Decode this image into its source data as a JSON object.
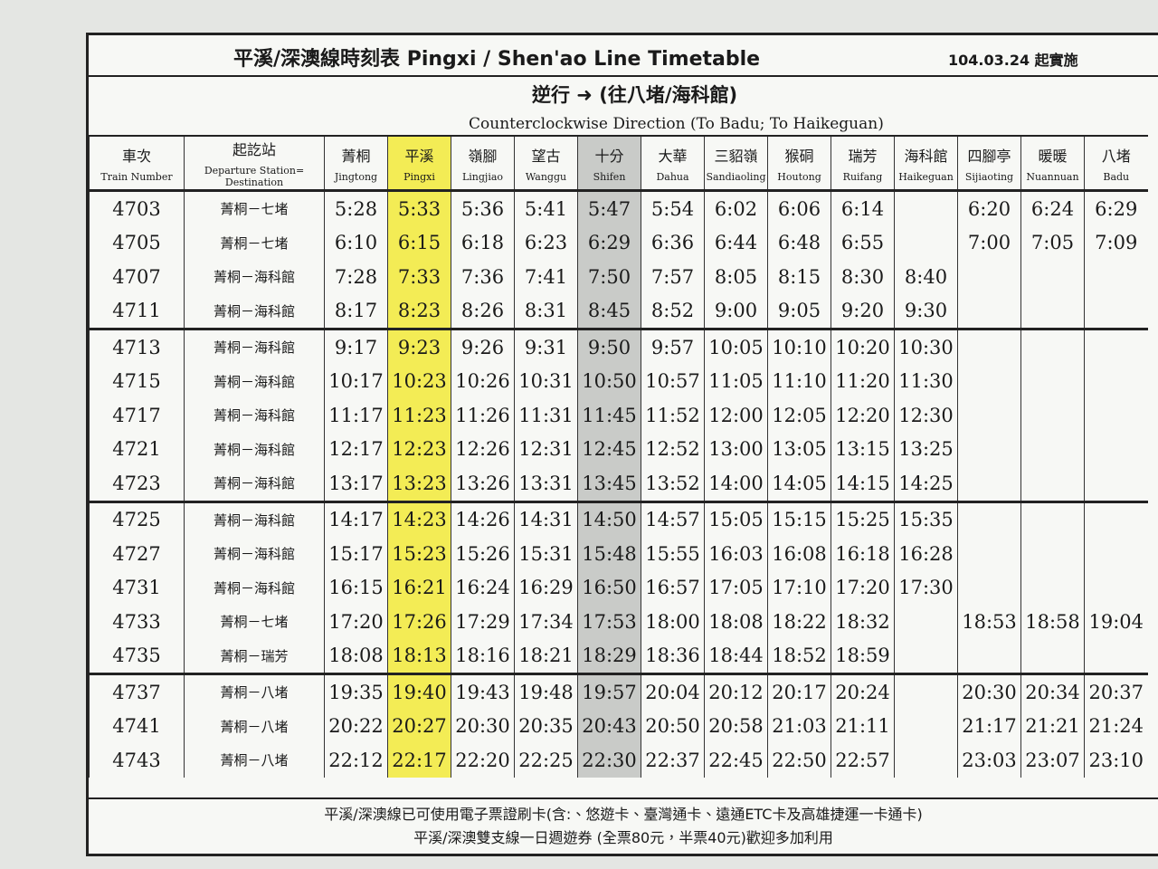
{
  "header": {
    "title": "平溪/深澳線時刻表 Pingxi / Shen'ao Line Timetable",
    "effective_date": "104.03.24 起實施",
    "direction": "逆行 ➜ (往八堵/海科館)",
    "direction_en": "Counterclockwise Direction (To Badu; To Haikeguan)"
  },
  "table": {
    "columns": [
      {
        "zh": "車次",
        "en": "Train Number"
      },
      {
        "zh": "起訖站",
        "en": "Departure Station= Destination"
      },
      {
        "zh": "菁桐",
        "en": "Jingtong"
      },
      {
        "zh": "平溪",
        "en": "Pingxi"
      },
      {
        "zh": "嶺腳",
        "en": "Lingjiao"
      },
      {
        "zh": "望古",
        "en": "Wanggu"
      },
      {
        "zh": "十分",
        "en": "Shifen"
      },
      {
        "zh": "大華",
        "en": "Dahua"
      },
      {
        "zh": "三貂嶺",
        "en": "Sandiaoling"
      },
      {
        "zh": "猴硐",
        "en": "Houtong"
      },
      {
        "zh": "瑞芳",
        "en": "Ruifang"
      },
      {
        "zh": "海科館",
        "en": "Haikeguan"
      },
      {
        "zh": "四腳亭",
        "en": "Sijiaoting"
      },
      {
        "zh": "暖暖",
        "en": "Nuannuan"
      },
      {
        "zh": "八堵",
        "en": "Badu"
      }
    ],
    "groups": [
      [
        {
          "train": "4703",
          "route": "菁桐－七堵",
          "times": [
            "5:28",
            "5:33",
            "5:36",
            "5:41",
            "5:47",
            "5:54",
            "6:02",
            "6:06",
            "6:14",
            null,
            "6:20",
            "6:24",
            "6:29"
          ]
        },
        {
          "train": "4705",
          "route": "菁桐－七堵",
          "times": [
            "6:10",
            "6:15",
            "6:18",
            "6:23",
            "6:29",
            "6:36",
            "6:44",
            "6:48",
            "6:55",
            null,
            "7:00",
            "7:05",
            "7:09"
          ]
        },
        {
          "train": "4707",
          "route": "菁桐－海科館",
          "times": [
            "7:28",
            "7:33",
            "7:36",
            "7:41",
            "7:50",
            "7:57",
            "8:05",
            "8:15",
            "8:30",
            "8:40",
            null,
            null,
            null
          ]
        },
        {
          "train": "4711",
          "route": "菁桐－海科館",
          "times": [
            "8:17",
            "8:23",
            "8:26",
            "8:31",
            "8:45",
            "8:52",
            "9:00",
            "9:05",
            "9:20",
            "9:30",
            null,
            null,
            null
          ]
        }
      ],
      [
        {
          "train": "4713",
          "route": "菁桐－海科館",
          "times": [
            "9:17",
            "9:23",
            "9:26",
            "9:31",
            "9:50",
            "9:57",
            "10:05",
            "10:10",
            "10:20",
            "10:30",
            null,
            null,
            null
          ]
        },
        {
          "train": "4715",
          "route": "菁桐－海科館",
          "times": [
            "10:17",
            "10:23",
            "10:26",
            "10:31",
            "10:50",
            "10:57",
            "11:05",
            "11:10",
            "11:20",
            "11:30",
            null,
            null,
            null
          ]
        },
        {
          "train": "4717",
          "route": "菁桐－海科館",
          "times": [
            "11:17",
            "11:23",
            "11:26",
            "11:31",
            "11:45",
            "11:52",
            "12:00",
            "12:05",
            "12:20",
            "12:30",
            null,
            null,
            null
          ]
        },
        {
          "train": "4721",
          "route": "菁桐－海科館",
          "times": [
            "12:17",
            "12:23",
            "12:26",
            "12:31",
            "12:45",
            "12:52",
            "13:00",
            "13:05",
            "13:15",
            "13:25",
            null,
            null,
            null
          ]
        },
        {
          "train": "4723",
          "route": "菁桐－海科館",
          "times": [
            "13:17",
            "13:23",
            "13:26",
            "13:31",
            "13:45",
            "13:52",
            "14:00",
            "14:05",
            "14:15",
            "14:25",
            null,
            null,
            null
          ]
        }
      ],
      [
        {
          "train": "4725",
          "route": "菁桐－海科館",
          "times": [
            "14:17",
            "14:23",
            "14:26",
            "14:31",
            "14:50",
            "14:57",
            "15:05",
            "15:15",
            "15:25",
            "15:35",
            null,
            null,
            null
          ]
        },
        {
          "train": "4727",
          "route": "菁桐－海科館",
          "times": [
            "15:17",
            "15:23",
            "15:26",
            "15:31",
            "15:48",
            "15:55",
            "16:03",
            "16:08",
            "16:18",
            "16:28",
            null,
            null,
            null
          ]
        },
        {
          "train": "4731",
          "route": "菁桐－海科館",
          "times": [
            "16:15",
            "16:21",
            "16:24",
            "16:29",
            "16:50",
            "16:57",
            "17:05",
            "17:10",
            "17:20",
            "17:30",
            null,
            null,
            null
          ]
        },
        {
          "train": "4733",
          "route": "菁桐－七堵",
          "times": [
            "17:20",
            "17:26",
            "17:29",
            "17:34",
            "17:53",
            "18:00",
            "18:08",
            "18:22",
            "18:32",
            null,
            "18:53",
            "18:58",
            "19:04"
          ]
        },
        {
          "train": "4735",
          "route": "菁桐－瑞芳",
          "times": [
            "18:08",
            "18:13",
            "18:16",
            "18:21",
            "18:29",
            "18:36",
            "18:44",
            "18:52",
            "18:59",
            null,
            null,
            null,
            null
          ]
        }
      ],
      [
        {
          "train": "4737",
          "route": "菁桐－八堵",
          "times": [
            "19:35",
            "19:40",
            "19:43",
            "19:48",
            "19:57",
            "20:04",
            "20:12",
            "20:17",
            "20:24",
            null,
            "20:30",
            "20:34",
            "20:37"
          ]
        },
        {
          "train": "4741",
          "route": "菁桐－八堵",
          "times": [
            "20:22",
            "20:27",
            "20:30",
            "20:35",
            "20:43",
            "20:50",
            "20:58",
            "21:03",
            "21:11",
            null,
            "21:17",
            "21:21",
            "21:24"
          ]
        },
        {
          "train": "4743",
          "route": "菁桐－八堵",
          "times": [
            "22:12",
            "22:17",
            "22:20",
            "22:25",
            "22:30",
            "22:37",
            "22:45",
            "22:50",
            "22:57",
            null,
            "23:03",
            "23:07",
            "23:10"
          ]
        }
      ]
    ]
  },
  "footer": [
    "平溪/深澳線已可使用電子票證刷卡(含:、悠遊卡、臺灣通卡、遠通ETC卡及高雄捷運一卡通卡)",
    "平溪/深澳雙支線一日週遊券 (全票80元，半票40元)歡迎多加利用"
  ]
}
